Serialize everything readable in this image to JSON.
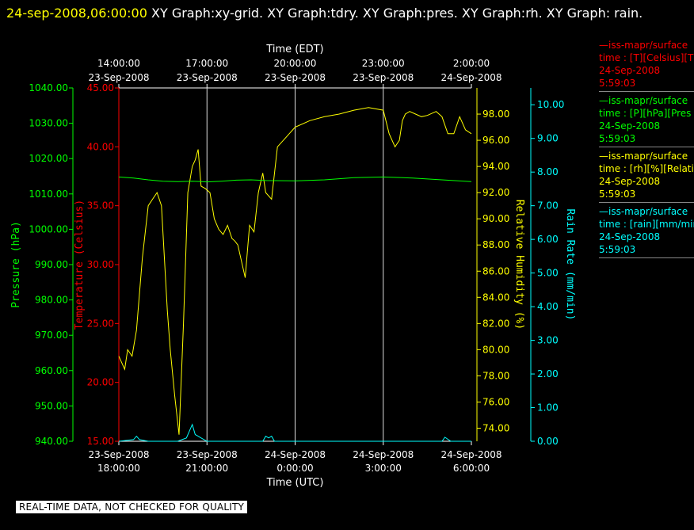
{
  "header": {
    "datetime": "24-sep-2008,06:00:00",
    "title": "XY Graph:xy-grid.  XY Graph:tdry.  XY Graph:pres.  XY Graph:rh.  XY Graph: rain."
  },
  "legend": [
    {
      "line1": "—iss-mapr/surface",
      "line2": "time : [T][Celsius][T",
      "line3": "24-Sep-2008",
      "line4": "5:59:03",
      "color": "#ff0000"
    },
    {
      "line1": "—iss-mapr/surface",
      "line2": "time : [P][hPa][Pres",
      "line3": "24-Sep-2008",
      "line4": "5:59:03",
      "color": "#00ff00"
    },
    {
      "line1": "—iss-mapr/surface",
      "line2": "time : [rh][%][Relati",
      "line3": "24-Sep-2008",
      "line4": "5:59:03",
      "color": "#ffff00"
    },
    {
      "line1": "—iss-mapr/surface",
      "line2": "time : [rain][mm/min",
      "line3": "24-Sep-2008",
      "line4": "5:59:03",
      "color": "#00ffff"
    }
  ],
  "banner": "REAL-TIME DATA, NOT CHECKED FOR QUALITY",
  "chart_data": {
    "type": "line",
    "top_axis": {
      "label": "Time (EDT)",
      "ticks": [
        {
          "t": "14:00:00",
          "d": "23-Sep-2008"
        },
        {
          "t": "17:00:00",
          "d": "23-Sep-2008"
        },
        {
          "t": "20:00:00",
          "d": "23-Sep-2008"
        },
        {
          "t": "23:00:00",
          "d": "23-Sep-2008"
        },
        {
          "t": "2:00:00",
          "d": "24-Sep-2008"
        }
      ]
    },
    "bottom_axis": {
      "label": "Time (UTC)",
      "ticks": [
        {
          "d": "23-Sep-2008",
          "t": "18:00:00"
        },
        {
          "d": "23-Sep-2008",
          "t": "21:00:00"
        },
        {
          "d": "24-Sep-2008",
          "t": "0:00:00"
        },
        {
          "d": "24-Sep-2008",
          "t": "3:00:00"
        },
        {
          "d": "24-Sep-2008",
          "t": "6:00:00"
        }
      ]
    },
    "xlim_hours_utc": [
      18,
      30
    ],
    "axes": {
      "pressure": {
        "label": "Pressure (hPa)",
        "min": 940,
        "max": 1040,
        "color": "#00ff00",
        "ticks": [
          "940.00",
          "950.00",
          "960.00",
          "970.00",
          "980.00",
          "990.00",
          "1000.00",
          "1010.00",
          "1020.00",
          "1030.00",
          "1040.00"
        ]
      },
      "temperature": {
        "label": "Temperature (Celsius)",
        "min": 15,
        "max": 45,
        "color": "#ff0000",
        "ticks": [
          "15.00",
          "20.00",
          "25.00",
          "30.00",
          "35.00",
          "40.00",
          "45.00"
        ]
      },
      "humidity": {
        "label": "Relative Humidity (%)",
        "min": 73,
        "max": 100,
        "color": "#ffff00",
        "ticks": [
          "74.00",
          "76.00",
          "78.00",
          "80.00",
          "82.00",
          "84.00",
          "86.00",
          "88.00",
          "90.00",
          "92.00",
          "94.00",
          "96.00",
          "98.00"
        ]
      },
      "rain": {
        "label": "Rain Rate (mm/min)",
        "min": 0,
        "max": 10.5,
        "color": "#00ffff",
        "ticks": [
          "0.00",
          "1.00",
          "2.00",
          "3.00",
          "4.00",
          "5.00",
          "6.00",
          "7.00",
          "8.00",
          "9.00",
          "10.00"
        ]
      }
    },
    "grid": "vertical",
    "series": [
      {
        "name": "Relative Humidity",
        "axis": "humidity",
        "color": "#ffff00",
        "x": [
          18.0,
          18.1,
          18.2,
          18.3,
          18.45,
          18.6,
          18.8,
          19.0,
          19.15,
          19.3,
          19.45,
          19.55,
          19.65,
          19.75,
          19.9,
          20.05,
          20.2,
          20.35,
          20.5,
          20.6,
          20.7,
          20.8,
          20.95,
          21.1,
          21.25,
          21.4,
          21.55,
          21.7,
          21.85,
          21.95,
          22.05,
          22.15,
          22.3,
          22.45,
          22.6,
          22.75,
          22.9,
          23.0,
          23.2,
          23.4,
          23.6,
          23.8,
          24.0,
          24.5,
          25.0,
          25.5,
          26.0,
          26.5,
          27.0,
          27.2,
          27.4,
          27.55,
          27.65,
          27.75,
          27.9,
          28.1,
          28.3,
          28.5,
          28.8,
          29.0,
          29.2,
          29.4,
          29.6,
          29.8,
          30.0
        ],
        "y": [
          79.5,
          79.0,
          78.5,
          80.0,
          79.5,
          81.5,
          87.0,
          91.0,
          91.5,
          92.0,
          91.0,
          87.0,
          83.0,
          80.0,
          76.5,
          73.5,
          82.0,
          92.0,
          94.0,
          94.5,
          95.3,
          92.5,
          92.3,
          92.0,
          90.0,
          89.2,
          88.8,
          89.5,
          88.5,
          88.3,
          88.0,
          87.0,
          85.5,
          89.5,
          89.0,
          92.0,
          93.5,
          92.0,
          91.5,
          95.5,
          96.0,
          96.5,
          97.0,
          97.5,
          97.8,
          98.0,
          98.3,
          98.5,
          98.3,
          96.5,
          95.5,
          96.0,
          97.5,
          98.0,
          98.2,
          98.0,
          97.8,
          97.9,
          98.2,
          97.8,
          96.5,
          96.5,
          97.8,
          96.8,
          96.5
        ]
      },
      {
        "name": "Pressure",
        "axis": "pressure",
        "color": "#00ff00",
        "x": [
          18.0,
          18.5,
          19.0,
          19.5,
          20.0,
          20.5,
          21.0,
          21.5,
          22.0,
          22.5,
          23.0,
          24.0,
          25.0,
          26.0,
          27.0,
          28.0,
          29.0,
          30.0
        ],
        "y": [
          1014.8,
          1014.5,
          1014.0,
          1013.6,
          1013.5,
          1013.6,
          1013.4,
          1013.6,
          1013.9,
          1014.0,
          1013.8,
          1013.7,
          1014.0,
          1014.6,
          1014.8,
          1014.5,
          1014.0,
          1013.5
        ]
      },
      {
        "name": "Rain Rate",
        "axis": "rain",
        "color": "#00ffff",
        "x": [
          18.0,
          18.5,
          18.6,
          18.7,
          19.0,
          20.0,
          20.3,
          20.4,
          20.5,
          20.6,
          20.7,
          20.8,
          21.0,
          22.0,
          22.9,
          23.0,
          23.1,
          23.2,
          23.3,
          25.0,
          26.0,
          27.0,
          28.0,
          29.0,
          29.1,
          29.3,
          30.0
        ],
        "y": [
          0.0,
          0.05,
          0.15,
          0.05,
          0.0,
          0.0,
          0.1,
          0.3,
          0.5,
          0.2,
          0.15,
          0.1,
          0.0,
          0.0,
          0.0,
          0.15,
          0.1,
          0.15,
          0.0,
          0.0,
          0.0,
          0.0,
          0.0,
          0.0,
          0.12,
          0.0,
          0.0
        ]
      }
    ]
  }
}
